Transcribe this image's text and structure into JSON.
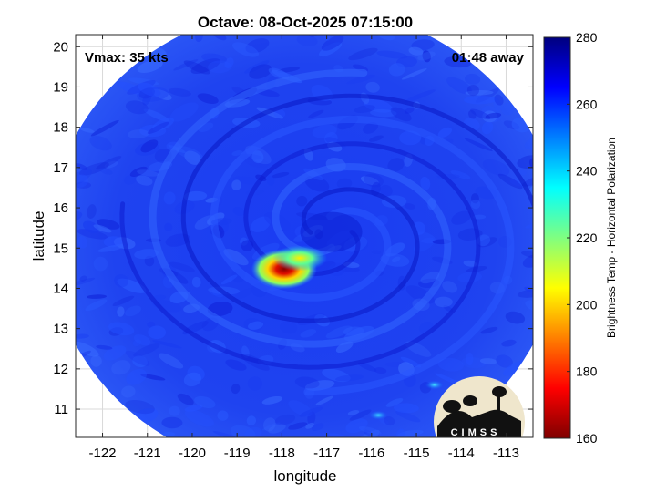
{
  "chart_data": {
    "type": "heatmap",
    "title": "Octave: 08-Oct-2025 07:15:00",
    "xlabel": "longitude",
    "ylabel": "latitude",
    "xlim": [
      -122.6,
      -112.4
    ],
    "ylim": [
      10.3,
      20.3
    ],
    "x_ticks": [
      -122,
      -121,
      -120,
      -119,
      -118,
      -117,
      -116,
      -115,
      -114,
      -113
    ],
    "y_ticks": [
      11,
      12,
      13,
      14,
      15,
      16,
      17,
      18,
      19,
      20
    ],
    "x_tick_labels": [
      "-122",
      "-121",
      "-120",
      "-119",
      "-118",
      "-117",
      "-116",
      "-115",
      "-114",
      "-113"
    ],
    "y_tick_labels": [
      "11",
      "12",
      "13",
      "14",
      "15",
      "16",
      "17",
      "18",
      "19",
      "20"
    ],
    "grid": true,
    "annotations": {
      "top_left": "Vmax: 35 kts",
      "top_right": "01:48 away"
    },
    "colorbar": {
      "label": "Brightness Temp - Horizontal Polarization",
      "min": 160,
      "max": 280,
      "ticks": [
        160,
        180,
        200,
        220,
        240,
        260,
        280
      ],
      "tick_labels": [
        "160",
        "180",
        "200",
        "220",
        "240",
        "260",
        "280"
      ],
      "colormap": "jet",
      "colormap_stops": [
        "#7f0000",
        "#ff0000",
        "#ffff00",
        "#00ffff",
        "#0000ff",
        "#00007f"
      ]
    },
    "swath": {
      "center_lon": -117.5,
      "center_lat": 15.2,
      "radius_deg": 5.7,
      "background_temp": 262,
      "storm_center_lon": -116.9,
      "storm_center_lat": 15.4
    },
    "features": [
      {
        "name": "cold convection core",
        "lon": -117.95,
        "lat": 14.48,
        "min_temp": 172
      },
      {
        "name": "convective band",
        "lon": -117.6,
        "lat": 14.75,
        "min_temp": 205
      },
      {
        "name": "isolated cell east",
        "lon": -115.85,
        "lat": 10.85,
        "min_temp": 235
      },
      {
        "name": "isolated cell southeast",
        "lon": -114.6,
        "lat": 11.6,
        "min_temp": 238
      }
    ],
    "logo_text": "CIMSS"
  }
}
